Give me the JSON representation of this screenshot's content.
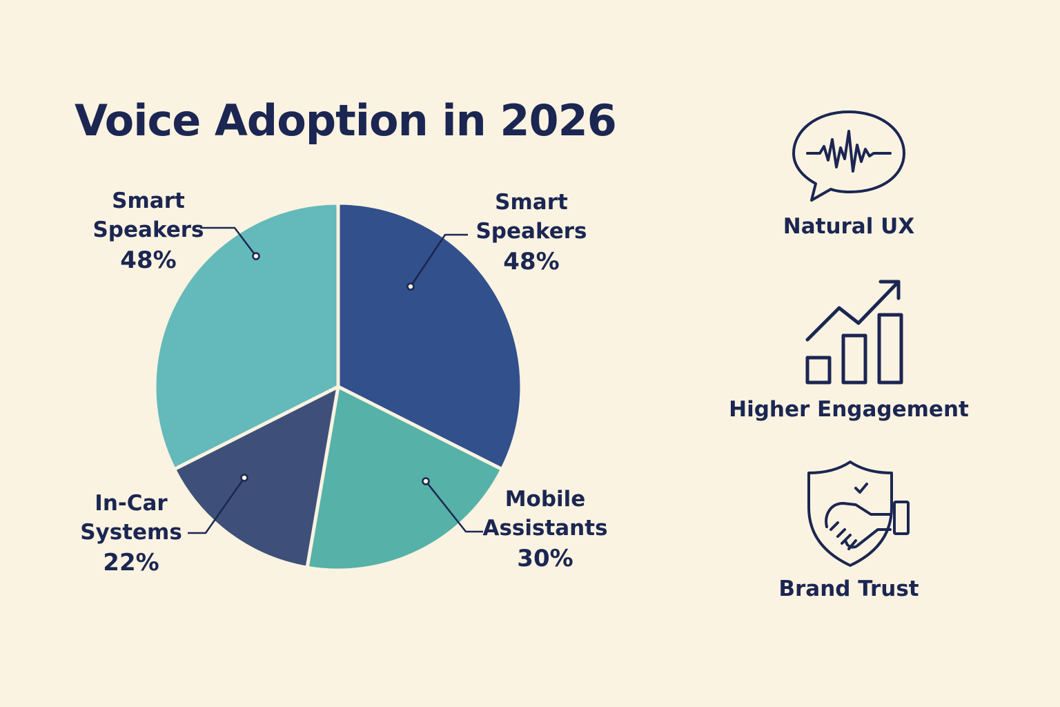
{
  "title": "Voice Adoption in 2026",
  "chart_data": {
    "type": "pie",
    "title": "Voice Adoption in 2026",
    "slices": [
      {
        "label": "Smart Speakers",
        "value": 48,
        "value_label": "48%",
        "color": "#31508c"
      },
      {
        "label": "Mobile Assistants",
        "value": 30,
        "value_label": "30%",
        "color": "#56b1a8"
      },
      {
        "label": "In-Car Systems",
        "value": 22,
        "value_label": "22%",
        "color": "#3e5079"
      },
      {
        "label": "Smart Speakers",
        "value": 48,
        "value_label": "48%",
        "color": "#64b9ba"
      }
    ]
  },
  "labels": {
    "smart_speakers_right": {
      "name1": "Smart",
      "name2": "Speakers",
      "pct": "48%"
    },
    "smart_speakers_left": {
      "name1": "Smart",
      "name2": "Speakers",
      "pct": "48%"
    },
    "mobile": {
      "name1": "Mobile",
      "name2": "Assistants",
      "pct": "30%"
    },
    "incar": {
      "name1": "In-Car",
      "name2": "Systems",
      "pct": "22%"
    }
  },
  "benefits": [
    {
      "label": "Natural UX",
      "icon": "speech-bubble-waveform-icon"
    },
    {
      "label": "Higher Engagement",
      "icon": "growth-chart-arrow-icon"
    },
    {
      "label": "Brand Trust",
      "icon": "shield-handshake-icon"
    }
  ],
  "colors": {
    "background": "#fbf3e1",
    "text": "#1b2652"
  }
}
